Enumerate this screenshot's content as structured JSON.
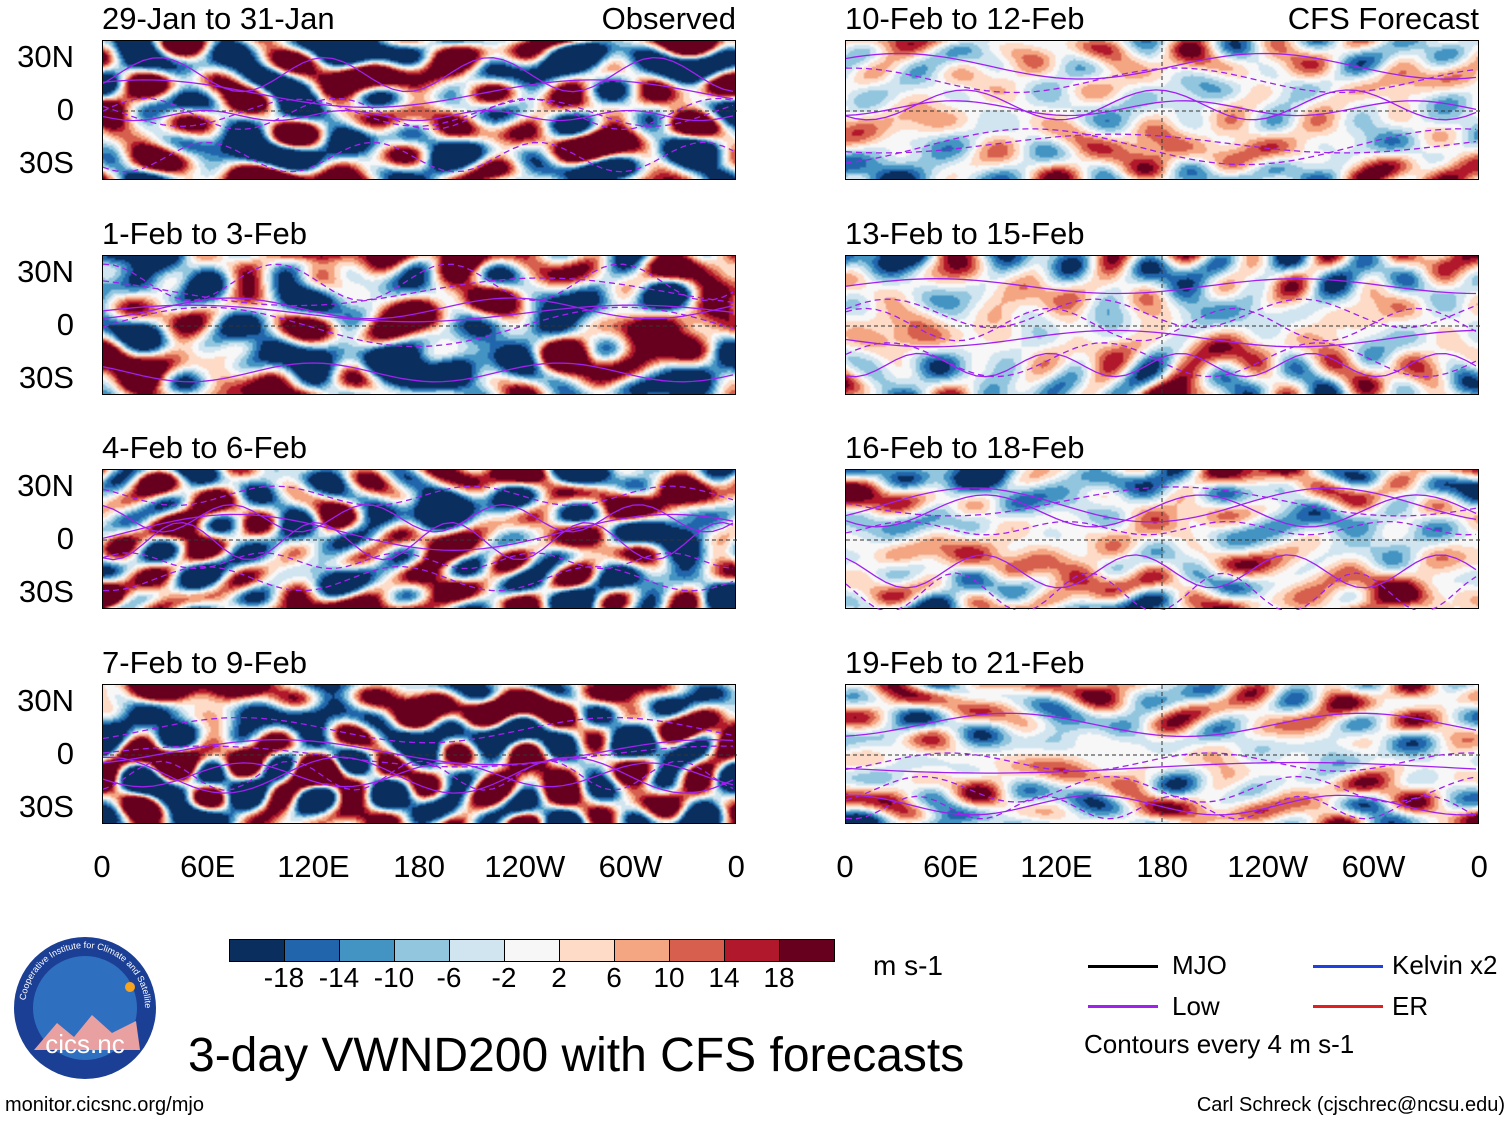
{
  "left_column": {
    "type_label": "Observed",
    "panels": [
      "29-Jan to 31-Jan",
      "1-Feb to 3-Feb",
      "4-Feb to 6-Feb",
      "7-Feb to 9-Feb"
    ]
  },
  "right_column": {
    "type_label": "CFS Forecast",
    "panels": [
      "10-Feb to 12-Feb",
      "13-Feb to 15-Feb",
      "16-Feb to 18-Feb",
      "19-Feb to 21-Feb"
    ]
  },
  "lat_labels": [
    "30N",
    "0",
    "30S"
  ],
  "lon_labels": [
    "0",
    "60E",
    "120E",
    "180",
    "120W",
    "60W",
    "0"
  ],
  "colorbar": {
    "ticks": [
      "-18",
      "-14",
      "-10",
      "-6",
      "-2",
      "2",
      "6",
      "10",
      "14",
      "18"
    ],
    "colors": [
      "#0a2f5f",
      "#2166ac",
      "#4393c3",
      "#92c5de",
      "#d1e5f0",
      "#f7f7f7",
      "#fddbc7",
      "#f4a582",
      "#d6604d",
      "#b2182b",
      "#67001f"
    ],
    "units": "m s-1"
  },
  "legend": {
    "items": [
      {
        "label": "MJO",
        "color": "#000000"
      },
      {
        "label": "Kelvin x2",
        "color": "#1f3fe0"
      },
      {
        "label": "Low",
        "color": "#a020f0"
      },
      {
        "label": "ER",
        "color": "#e02020"
      }
    ],
    "note": "Contours every 4 m s-1"
  },
  "title": "3-day VWND200 with CFS forecasts",
  "url": "monitor.cicsnc.org/mjo",
  "credit": "Carl Schreck (cjschrec@ncsu.edu)",
  "logo": {
    "text": "cics.nc",
    "ring": "Cooperative Institute for Climate and Satellites"
  }
}
